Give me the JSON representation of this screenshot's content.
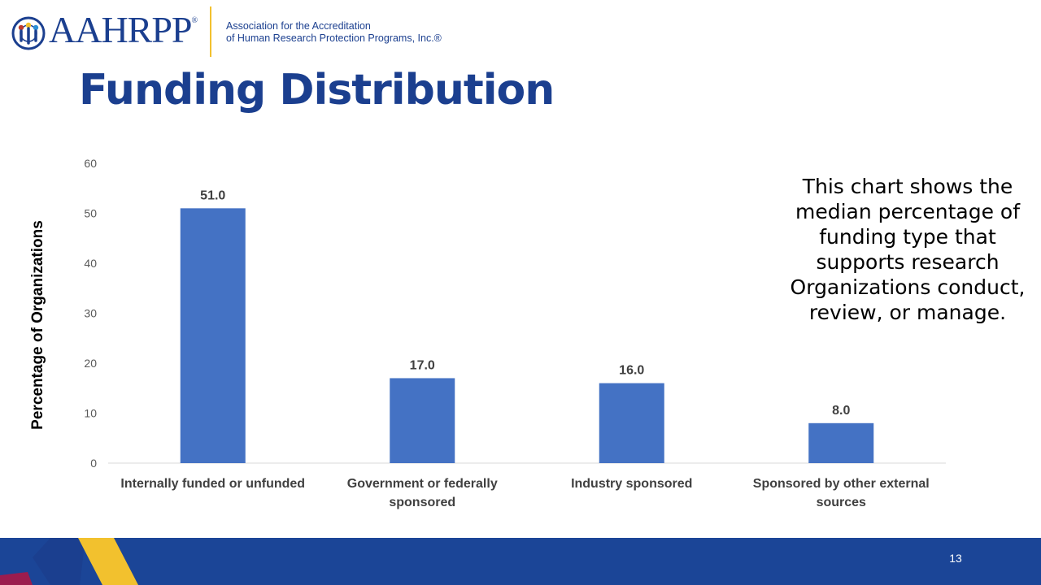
{
  "header": {
    "logo_text": "AAHRPP",
    "logo_registered": "®",
    "org_name_line1": "Association for the Accreditation",
    "org_name_line2": "of Human Research Protection Programs, Inc.®"
  },
  "page_title": "Funding Distribution",
  "description": "This chart shows the median percentage of funding type that supports research Organizations conduct, review, or manage.",
  "footer": {
    "page_number": "13"
  },
  "colors": {
    "brand_blue": "#1b3f8f",
    "bar": "#4472c4",
    "footer_blue": "#1b4597",
    "accent_yellow": "#f2c12e",
    "accent_maroon": "#9b1c4e"
  },
  "icons": {
    "logo_mark": "people-globe-icon"
  },
  "chart_data": {
    "type": "bar",
    "categories": [
      [
        "Internally funded or unfunded"
      ],
      [
        "Government or federally",
        "sponsored"
      ],
      [
        "Industry sponsored"
      ],
      [
        "Sponsored by other external",
        "sources"
      ]
    ],
    "values": [
      51.0,
      17.0,
      16.0,
      8.0
    ],
    "data_labels": [
      "51.0",
      "17.0",
      "16.0",
      "8.0"
    ],
    "ylabel": "Percentage of Organizations",
    "xlabel": "",
    "ylim": [
      0,
      60
    ],
    "yticks": [
      "0",
      "10",
      "20",
      "30",
      "40",
      "50",
      "60"
    ],
    "grid": false,
    "legend": "none"
  }
}
